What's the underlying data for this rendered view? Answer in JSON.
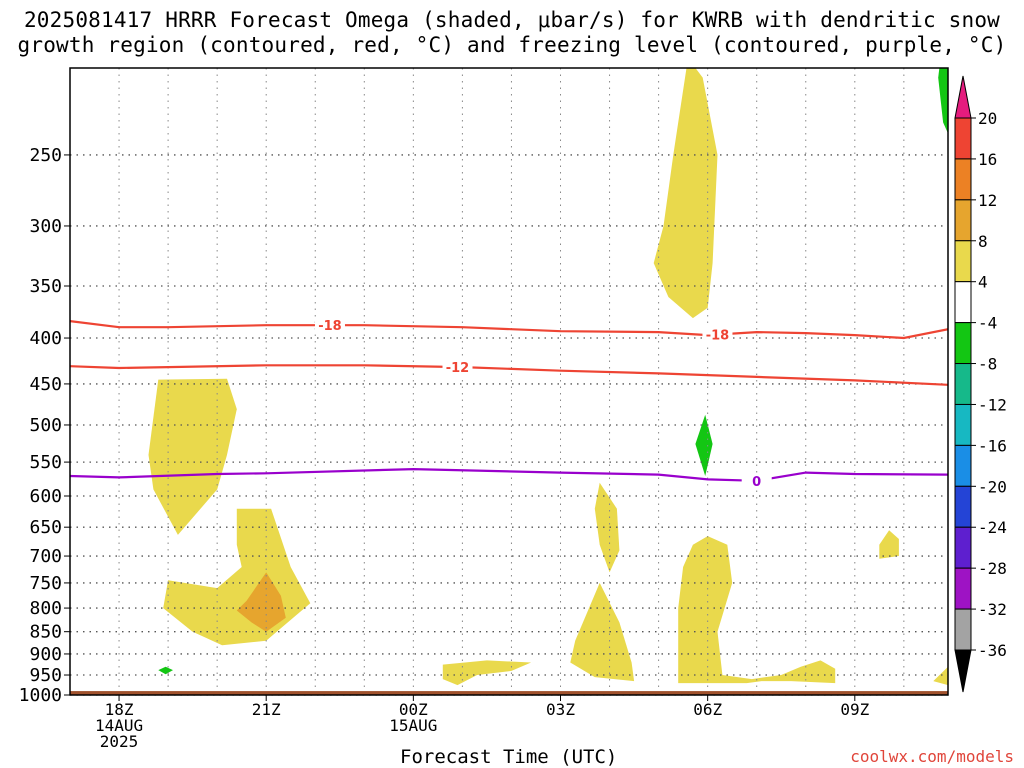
{
  "title": {
    "line1": "2025081417 HRRR Forecast Omega (shaded, μbar/s) for KWRB with dendritic snow",
    "line2": "growth region (contoured, red, °C) and freezing level (contoured, purple, °C)"
  },
  "watermark": "coolwx.com/models",
  "colors": {
    "dgz_contour": "#ee4433",
    "freezing_contour": "#9900cc",
    "ground": "#a0522d",
    "frame": "#000000",
    "grid": "#555555"
  },
  "chart_data": {
    "type": "heatmap",
    "xlabel": "Forecast Time (UTC)",
    "ylabel": "",
    "y_scale": "log-pressure",
    "y_axis_inverted": true,
    "x_ticks": [
      {
        "hour": 0,
        "label": [
          "18Z",
          "14AUG",
          "2025"
        ]
      },
      {
        "hour": 3,
        "label": [
          "21Z"
        ]
      },
      {
        "hour": 6,
        "label": [
          "00Z",
          "15AUG"
        ]
      },
      {
        "hour": 9,
        "label": [
          "03Z"
        ]
      },
      {
        "hour": 12,
        "label": [
          "06Z"
        ]
      },
      {
        "hour": 15,
        "label": [
          "09Z"
        ]
      }
    ],
    "xlim_hours": [
      -1,
      16.9
    ],
    "y_ticks": [
      250,
      300,
      350,
      400,
      450,
      500,
      550,
      600,
      650,
      700,
      750,
      800,
      850,
      900,
      950,
      1000
    ],
    "ylim": [
      200,
      1000
    ],
    "grid": true,
    "colorbar": {
      "label": "μbar/s",
      "levels": [
        {
          "label": "20",
          "color": "#e51c7e"
        },
        {
          "label": "16",
          "color": "#ee4433"
        },
        {
          "label": "12",
          "color": "#ec8124"
        },
        {
          "label": "8",
          "color": "#e6a52e"
        },
        {
          "label": "4",
          "color": "#e9d94c"
        },
        {
          "label": "-4",
          "color": "#ffffff"
        },
        {
          "label": "-8",
          "color": "#13c613"
        },
        {
          "label": "-12",
          "color": "#16b98a"
        },
        {
          "label": "-16",
          "color": "#17b8c2"
        },
        {
          "label": "-20",
          "color": "#1a8ee6"
        },
        {
          "label": "-24",
          "color": "#2444d6"
        },
        {
          "label": "-28",
          "color": "#5e1fcf"
        },
        {
          "label": "-32",
          "color": "#9e13c4"
        },
        {
          "label": "-36",
          "color": "#a3a3a3"
        }
      ],
      "overflow_top_color": "#e51c7e",
      "underflow_bottom_color": "#000000"
    },
    "contours": [
      {
        "label": "-18",
        "color": "#ee4433",
        "label_hours": [
          4.3,
          12.2
        ],
        "points": [
          [
            -1,
            383
          ],
          [
            0,
            389
          ],
          [
            1,
            389
          ],
          [
            3,
            387
          ],
          [
            5,
            387
          ],
          [
            7,
            389
          ],
          [
            9,
            393
          ],
          [
            11,
            394
          ],
          [
            12,
            397
          ],
          [
            13,
            394
          ],
          [
            14,
            395
          ],
          [
            15,
            397
          ],
          [
            16,
            400
          ],
          [
            16.9,
            391
          ]
        ]
      },
      {
        "label": "-12",
        "color": "#ee4433",
        "label_hours": [
          6.9
        ],
        "points": [
          [
            -1,
            430
          ],
          [
            0,
            432
          ],
          [
            1,
            431
          ],
          [
            3,
            429
          ],
          [
            5,
            429
          ],
          [
            7,
            431
          ],
          [
            9,
            435
          ],
          [
            11,
            438
          ],
          [
            13,
            442
          ],
          [
            15,
            446
          ],
          [
            16.9,
            451
          ]
        ]
      },
      {
        "label": "0",
        "color": "#9900cc",
        "label_hours": [
          13.0
        ],
        "points": [
          [
            -1,
            570
          ],
          [
            0,
            572
          ],
          [
            2,
            567
          ],
          [
            3,
            566
          ],
          [
            6,
            560
          ],
          [
            9,
            565
          ],
          [
            11,
            568
          ],
          [
            12,
            575
          ],
          [
            13,
            577
          ],
          [
            14,
            565
          ],
          [
            15,
            567
          ],
          [
            16.9,
            568
          ]
        ]
      }
    ],
    "shaded_regions": [
      {
        "value_range": "4 to 8",
        "color": "#e9d94c",
        "points": [
          [
            0.8,
            445
          ],
          [
            2.2,
            444
          ],
          [
            2.4,
            480
          ],
          [
            2.2,
            540
          ],
          [
            2.0,
            590
          ],
          [
            1.2,
            663
          ],
          [
            0.7,
            590
          ],
          [
            0.6,
            540
          ]
        ]
      },
      {
        "value_range": "4 to 8",
        "color": "#e9d94c",
        "points": [
          [
            2.4,
            620
          ],
          [
            3.1,
            620
          ],
          [
            3.5,
            720
          ],
          [
            3.9,
            790
          ],
          [
            3.0,
            870
          ],
          [
            2.1,
            880
          ],
          [
            1.5,
            850
          ],
          [
            0.9,
            800
          ],
          [
            1.0,
            745
          ],
          [
            2.0,
            760
          ],
          [
            2.5,
            720
          ],
          [
            2.4,
            680
          ]
        ]
      },
      {
        "value_range": "8 to 12",
        "color": "#e6a52e",
        "points": [
          [
            3.0,
            730
          ],
          [
            3.3,
            775
          ],
          [
            3.4,
            820
          ],
          [
            3.0,
            850
          ],
          [
            2.7,
            830
          ],
          [
            2.4,
            805
          ],
          [
            2.6,
            785
          ]
        ]
      },
      {
        "value_range": "4 to 8",
        "color": "#e9d94c",
        "points": [
          [
            11.6,
            195
          ],
          [
            11.9,
            205
          ],
          [
            12.2,
            250
          ],
          [
            12.1,
            330
          ],
          [
            12.0,
            370
          ],
          [
            11.7,
            380
          ],
          [
            11.2,
            360
          ],
          [
            10.9,
            330
          ],
          [
            11.1,
            300
          ],
          [
            11.3,
            250
          ]
        ]
      },
      {
        "value_range": "4 to 8",
        "color": "#e9d94c",
        "points": [
          [
            9.8,
            580
          ],
          [
            10.15,
            620
          ],
          [
            10.2,
            690
          ],
          [
            10.0,
            730
          ],
          [
            9.8,
            680
          ],
          [
            9.7,
            620
          ]
        ]
      },
      {
        "value_range": "4 to 8",
        "color": "#e9d94c",
        "points": [
          [
            9.8,
            750
          ],
          [
            10.2,
            830
          ],
          [
            10.45,
            920
          ],
          [
            10.5,
            965
          ],
          [
            9.7,
            955
          ],
          [
            9.2,
            920
          ],
          [
            9.3,
            870
          ]
        ]
      },
      {
        "value_range": "4 to 8",
        "color": "#e9d94c",
        "points": [
          [
            6.6,
            925
          ],
          [
            7.5,
            915
          ],
          [
            8.4,
            920
          ],
          [
            8.0,
            940
          ],
          [
            7.3,
            950
          ],
          [
            6.9,
            975
          ],
          [
            6.6,
            960
          ]
        ]
      },
      {
        "value_range": "4 to 8",
        "color": "#e9d94c",
        "points": [
          [
            12.0,
            665
          ],
          [
            12.4,
            680
          ],
          [
            12.5,
            750
          ],
          [
            12.2,
            850
          ],
          [
            12.3,
            950
          ],
          [
            12.9,
            960
          ],
          [
            13.5,
            950
          ],
          [
            13.9,
            930
          ],
          [
            14.3,
            915
          ],
          [
            14.6,
            935
          ],
          [
            14.6,
            970
          ],
          [
            13.7,
            965
          ],
          [
            13.1,
            965
          ],
          [
            12.8,
            970
          ],
          [
            11.4,
            970
          ],
          [
            11.4,
            900
          ],
          [
            11.4,
            800
          ],
          [
            11.5,
            720
          ],
          [
            11.7,
            680
          ]
        ]
      },
      {
        "value_range": "4 to 8",
        "color": "#e9d94c",
        "points": [
          [
            15.7,
            655
          ],
          [
            15.9,
            670
          ],
          [
            15.9,
            700
          ],
          [
            15.5,
            705
          ],
          [
            15.5,
            680
          ]
        ]
      },
      {
        "value_range": "4 to 8",
        "color": "#e9d94c",
        "points": [
          [
            16.9,
            930
          ],
          [
            16.9,
            975
          ],
          [
            16.6,
            965
          ]
        ]
      },
      {
        "value_range": "-8 to -4",
        "color": "#13c613",
        "points": [
          [
            11.95,
            487
          ],
          [
            12.1,
            525
          ],
          [
            11.95,
            570
          ],
          [
            11.75,
            525
          ]
        ]
      },
      {
        "value_range": "-8 to -4",
        "color": "#13c613",
        "points": [
          [
            16.8,
            185
          ],
          [
            17.0,
            205
          ],
          [
            16.95,
            240
          ],
          [
            16.8,
            230
          ],
          [
            16.7,
            205
          ]
        ]
      },
      {
        "value_range": "-8 to -4",
        "color": "#13c613",
        "points": [
          [
            0.95,
            930
          ],
          [
            1.1,
            938
          ],
          [
            0.95,
            948
          ],
          [
            0.8,
            938
          ]
        ]
      }
    ],
    "ground_below_hpa": 990
  }
}
